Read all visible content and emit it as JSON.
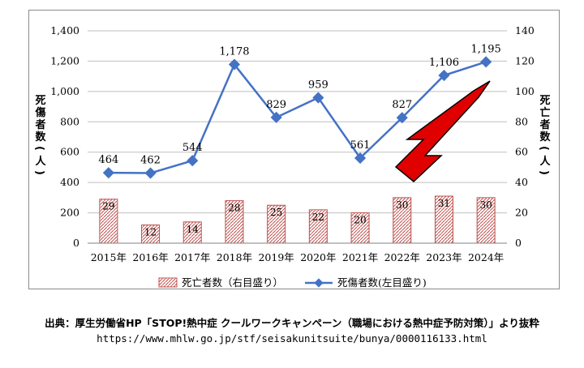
{
  "chart_data": {
    "type": "bar+line",
    "categories": [
      "2015年",
      "2016年",
      "2017年",
      "2018年",
      "2019年",
      "2020年",
      "2021年",
      "2022年",
      "2023年",
      "2024年"
    ],
    "series": [
      {
        "name": "死亡者数（右目盛り）",
        "type": "bar",
        "axis": "right",
        "values": [
          29,
          12,
          14,
          28,
          25,
          22,
          20,
          30,
          31,
          30
        ],
        "color": "#c0504d"
      },
      {
        "name": "死傷者数(左目盛り)",
        "type": "line",
        "axis": "left",
        "values": [
          464,
          462,
          544,
          1178,
          829,
          959,
          561,
          827,
          1106,
          1195
        ],
        "color": "#4472c4"
      }
    ],
    "y_left": {
      "label": "死傷者数(人)",
      "range": [
        0,
        1400
      ],
      "ticks": [
        "0",
        "200",
        "400",
        "600",
        "800",
        "1,000",
        "1,200",
        "1,400"
      ]
    },
    "y_right": {
      "label": "死亡者数(人)",
      "range": [
        0,
        140
      ],
      "ticks": [
        "0",
        "20",
        "40",
        "60",
        "80",
        "100",
        "120",
        "140"
      ]
    },
    "line_labels": [
      "464",
      "462",
      "544",
      "1,178",
      "829",
      "959",
      "561",
      "827",
      "1,106",
      "1,195"
    ],
    "gridlines": true,
    "legend_position": "bottom",
    "annotation": {
      "shape": "arrow",
      "color": "#e00000",
      "direction": "up-right"
    }
  },
  "footer": {
    "source": "出典：厚生労働省HP「STOP!熱中症 クールワークキャンペーン（職場における熱中症予防対策）」より抜粋",
    "url": "https://www.mhlw.go.jp/stf/seisakunitsuite/bunya/0000116133.html"
  }
}
